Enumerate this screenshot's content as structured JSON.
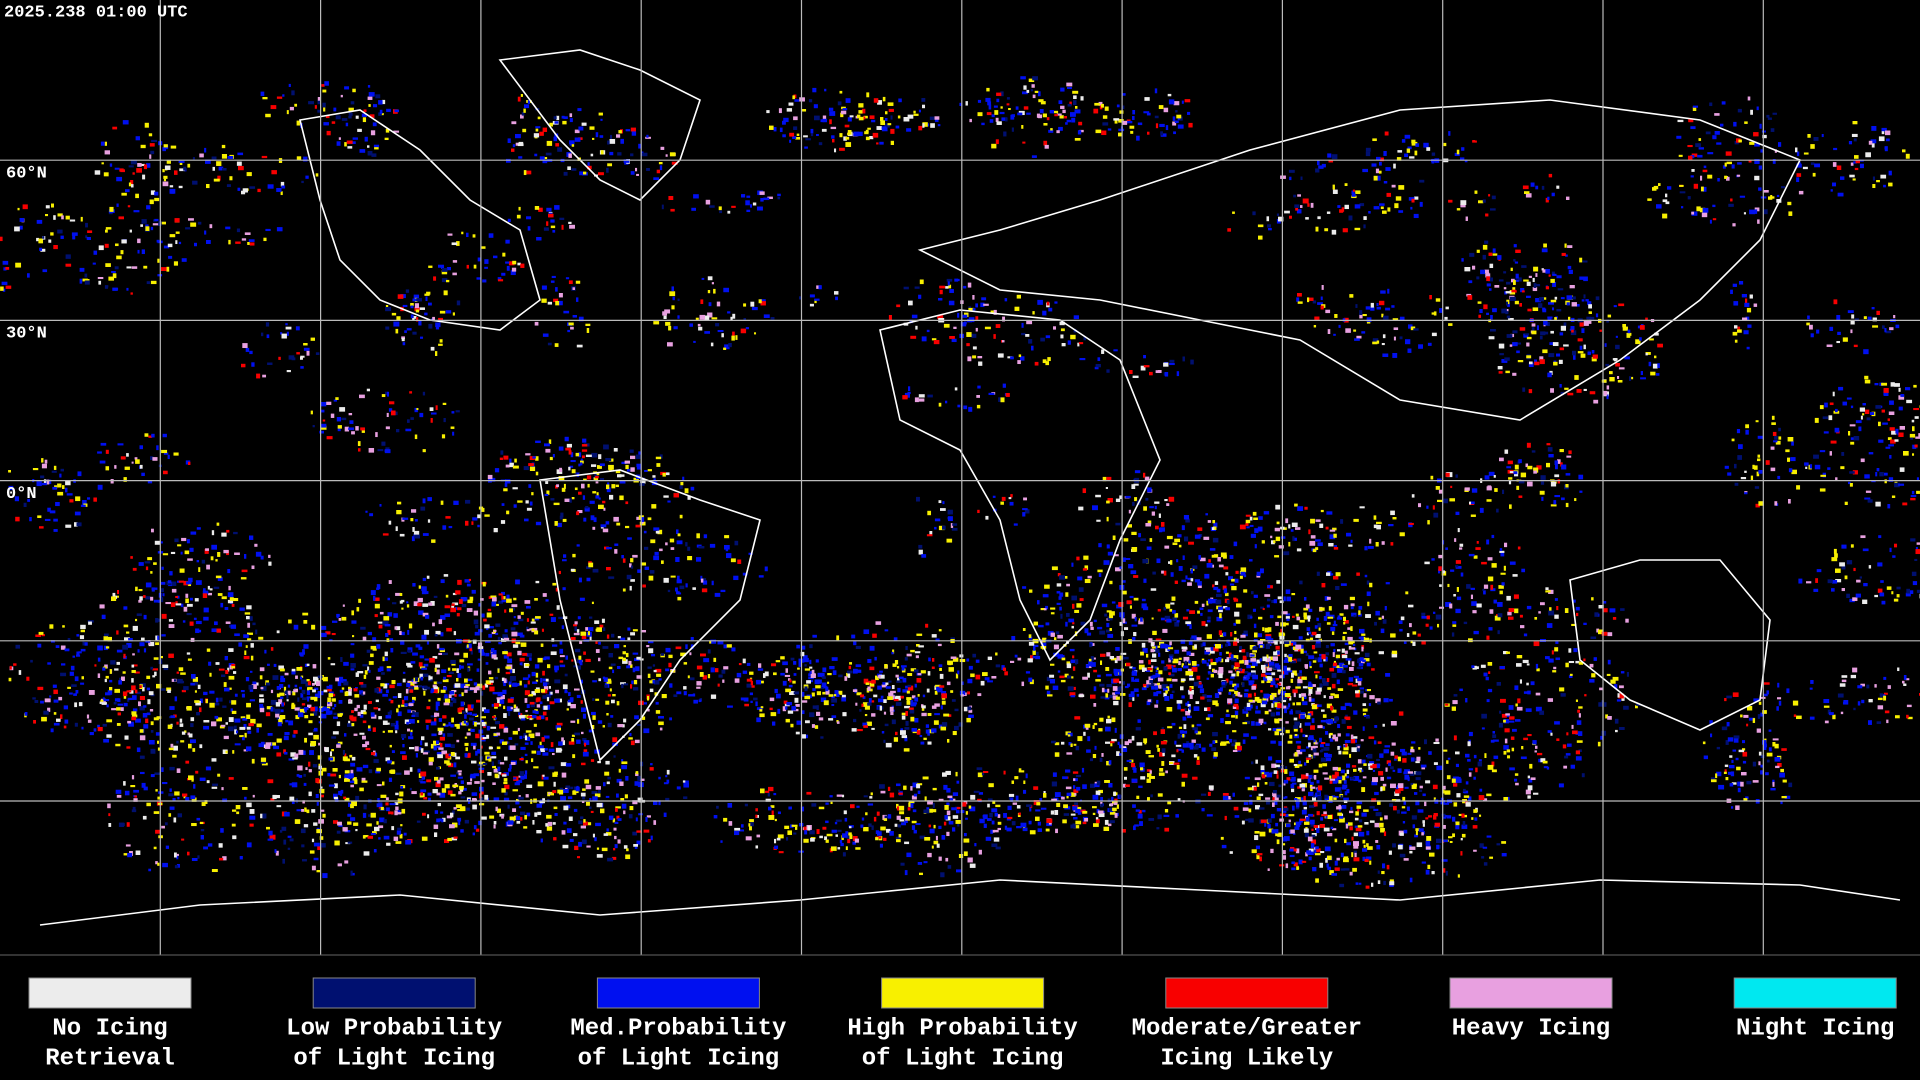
{
  "header": {
    "timestamp": "2025.238 01:00 UTC"
  },
  "map": {
    "latitude_labels": [
      "60°N",
      "30°N",
      "0°N"
    ]
  },
  "legend": {
    "items": [
      {
        "lines": [
          "No Icing",
          "Retrieval"
        ],
        "color": "#ececec"
      },
      {
        "lines": [
          "Low Probability",
          "of Light Icing"
        ],
        "color": "#001070"
      },
      {
        "lines": [
          "Med.Probability",
          "of Light Icing"
        ],
        "color": "#0010f0"
      },
      {
        "lines": [
          "High Probability",
          "of Light Icing"
        ],
        "color": "#f8f000"
      },
      {
        "lines": [
          "Moderate/Greater",
          "Icing Likely"
        ],
        "color": "#f80000"
      },
      {
        "lines": [
          "Heavy Icing"
        ],
        "color": "#e8a0e0"
      },
      {
        "lines": [
          "Night Icing"
        ],
        "color": "#00e8f0"
      }
    ]
  }
}
